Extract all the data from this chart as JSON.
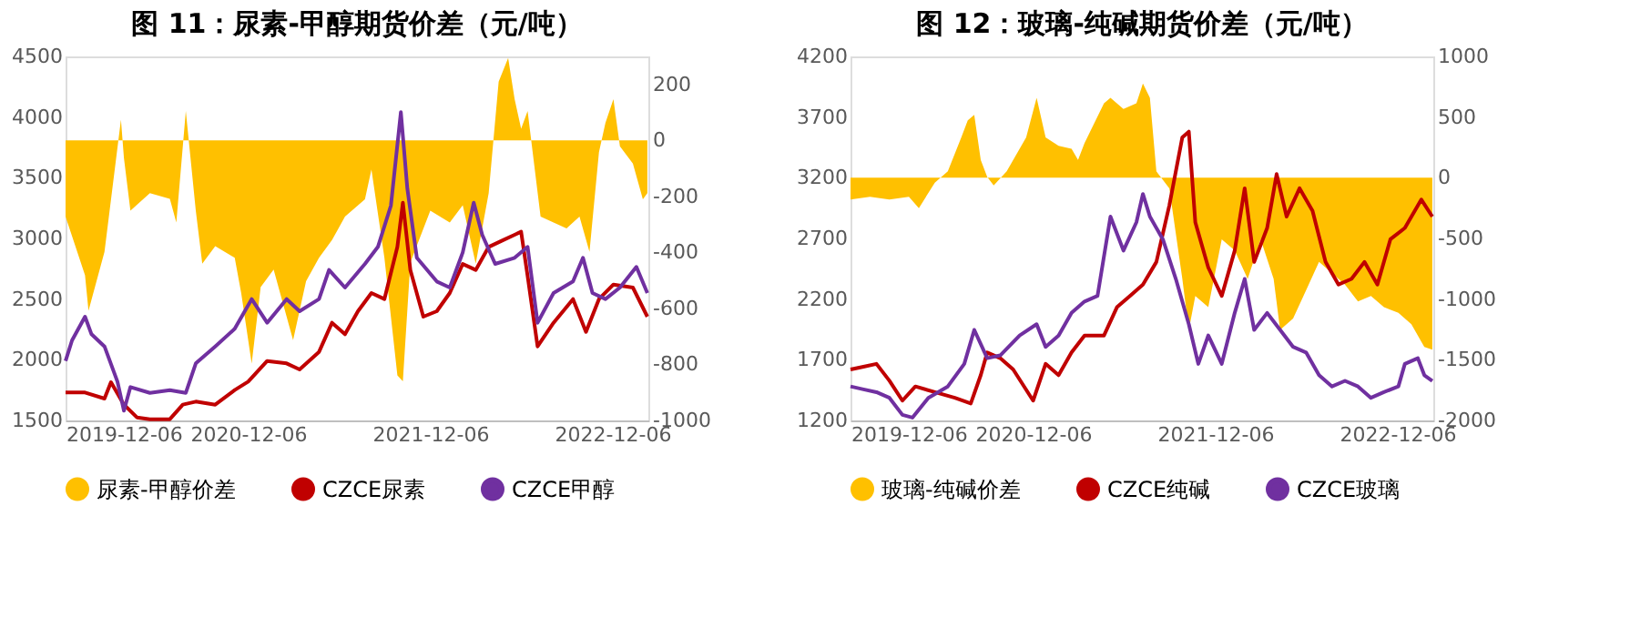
{
  "chart_data": [
    {
      "type": "line",
      "title": "图 11：尿素-甲醇期货价差（元/吨）",
      "legend": "bottom",
      "grid": false,
      "xlim": [
        "2019-12-06",
        "2023-02-16"
      ],
      "xticks": [
        {
          "value": "2019-12-06",
          "label": "2019-12-06"
        },
        {
          "value": "2020-12-06",
          "label": "2020-12-06"
        },
        {
          "value": "2021-12-06",
          "label": "2021-12-06"
        },
        {
          "value": "2022-12-06",
          "label": "2022-12-06"
        }
      ],
      "ylim": [
        1500,
        4500
      ],
      "yticks": [
        1500,
        2000,
        2500,
        3000,
        3500,
        4000,
        4500
      ],
      "y2lim": [
        -1000,
        300
      ],
      "y2ticks": [
        -1000,
        -800,
        -600,
        -400,
        -200,
        0,
        200
      ],
      "series": [
        {
          "name": "尿素-甲醇价差",
          "type": "area",
          "axis": "y2",
          "color": "#ffc000",
          "x": [
            "2019-12-06",
            "2020-01-14",
            "2020-01-21",
            "2020-02-22",
            "2020-03-26",
            "2020-04-01",
            "2020-04-14",
            "2020-05-23",
            "2020-07-02",
            "2020-07-15",
            "2020-08-03",
            "2020-08-23",
            "2020-09-05",
            "2020-10-01",
            "2020-11-09",
            "2020-11-22",
            "2020-12-13",
            "2020-12-31",
            "2021-01-26",
            "2021-03-06",
            "2021-04-01",
            "2021-04-27",
            "2021-05-23",
            "2021-06-18",
            "2021-07-28",
            "2021-08-10",
            "2021-09-05",
            "2021-10-01",
            "2021-10-12",
            "2021-10-27",
            "2021-12-06",
            "2022-01-14",
            "2022-02-09",
            "2022-03-07",
            "2022-04-02",
            "2022-04-22",
            "2022-05-11",
            "2022-05-24",
            "2022-06-06",
            "2022-06-19",
            "2022-07-15",
            "2022-08-10",
            "2022-09-05",
            "2022-10-01",
            "2022-10-21",
            "2022-11-09",
            "2022-11-22",
            "2022-12-08",
            "2022-12-21",
            "2023-01-16",
            "2023-02-05",
            "2023-02-14"
          ],
          "values": [
            -272,
            -482,
            -608,
            -398,
            74,
            -63,
            -251,
            -188,
            -209,
            -293,
            105,
            -251,
            -440,
            -378,
            -419,
            -545,
            -797,
            -524,
            -461,
            -713,
            -503,
            -419,
            -356,
            -272,
            -210,
            -104,
            -419,
            -839,
            -860,
            -436,
            -251,
            -293,
            -231,
            -440,
            -188,
            210,
            294,
            147,
            42,
            105,
            -272,
            -293,
            -314,
            -272,
            -398,
            -42,
            63,
            147,
            -21,
            -83,
            -210,
            -188
          ]
        },
        {
          "name": "CZCE尿素",
          "type": "line",
          "color": "#c00000",
          "x": [
            "2019-12-06",
            "2020-01-14",
            "2020-02-22",
            "2020-03-06",
            "2020-04-01",
            "2020-04-27",
            "2020-05-23",
            "2020-07-02",
            "2020-07-28",
            "2020-08-23",
            "2020-10-01",
            "2020-11-09",
            "2020-12-06",
            "2021-01-13",
            "2021-02-21",
            "2021-03-19",
            "2021-04-27",
            "2021-05-23",
            "2021-06-18",
            "2021-07-14",
            "2021-08-10",
            "2021-09-05",
            "2021-10-01",
            "2021-10-12",
            "2021-10-27",
            "2021-11-22",
            "2021-12-19",
            "2022-01-14",
            "2022-02-09",
            "2022-03-07",
            "2022-04-02",
            "2022-04-28",
            "2022-05-24",
            "2022-06-06",
            "2022-06-19",
            "2022-07-09",
            "2022-08-10",
            "2022-09-18",
            "2022-10-14",
            "2022-11-09",
            "2022-12-08",
            "2023-01-16",
            "2023-02-14"
          ],
          "values": [
            1730,
            1730,
            1680,
            1815,
            1630,
            1525,
            1510,
            1510,
            1630,
            1655,
            1630,
            1750,
            1820,
            1990,
            1970,
            1920,
            2065,
            2305,
            2210,
            2400,
            2550,
            2500,
            2930,
            3295,
            2740,
            2355,
            2400,
            2550,
            2790,
            2740,
            2930,
            2980,
            3030,
            3055,
            2690,
            2110,
            2305,
            2500,
            2230,
            2500,
            2620,
            2595,
            2355
          ]
        },
        {
          "name": "CZCE甲醇",
          "type": "line",
          "color": "#7030a0",
          "x": [
            "2019-12-06",
            "2019-12-19",
            "2020-01-14",
            "2020-01-27",
            "2020-02-22",
            "2020-03-19",
            "2020-04-01",
            "2020-04-14",
            "2020-05-23",
            "2020-07-02",
            "2020-08-03",
            "2020-08-23",
            "2020-10-01",
            "2020-11-09",
            "2020-12-13",
            "2021-01-13",
            "2021-02-21",
            "2021-03-19",
            "2021-04-27",
            "2021-05-17",
            "2021-06-18",
            "2021-07-28",
            "2021-08-23",
            "2021-09-18",
            "2021-10-08",
            "2021-10-21",
            "2021-11-09",
            "2021-12-19",
            "2022-01-14",
            "2022-02-09",
            "2022-03-03",
            "2022-03-20",
            "2022-04-15",
            "2022-05-24",
            "2022-06-19",
            "2022-07-09",
            "2022-08-10",
            "2022-09-18",
            "2022-10-08",
            "2022-10-27",
            "2022-11-22",
            "2022-12-21",
            "2023-01-23",
            "2023-02-14"
          ],
          "values": [
            1990,
            2160,
            2355,
            2210,
            2110,
            1820,
            1580,
            1775,
            1727,
            1750,
            1727,
            1970,
            2110,
            2255,
            2500,
            2305,
            2500,
            2400,
            2500,
            2740,
            2595,
            2790,
            2930,
            3270,
            4040,
            3410,
            2840,
            2645,
            2595,
            2885,
            3295,
            3030,
            2790,
            2840,
            2930,
            2305,
            2550,
            2645,
            2840,
            2550,
            2500,
            2595,
            2765,
            2550
          ]
        }
      ]
    },
    {
      "type": "line",
      "title": "图 12：玻璃-纯碱期货价差（元/吨）",
      "legend": "bottom",
      "grid": false,
      "xlim": [
        "2019-12-06",
        "2023-02-16"
      ],
      "xticks": [
        {
          "value": "2019-12-06",
          "label": "2019-12-06"
        },
        {
          "value": "2020-12-06",
          "label": "2020-12-06"
        },
        {
          "value": "2021-12-06",
          "label": "2021-12-06"
        },
        {
          "value": "2022-12-06",
          "label": "2022-12-06"
        }
      ],
      "ylim": [
        1200,
        4200
      ],
      "yticks": [
        1200,
        1700,
        2200,
        2700,
        3200,
        3700,
        4200
      ],
      "y2lim": [
        -2000,
        1000
      ],
      "y2ticks": [
        -2000,
        -1500,
        -1000,
        -500,
        0,
        500,
        1000
      ],
      "series": [
        {
          "name": "玻璃-纯碱价差",
          "type": "area",
          "axis": "y2",
          "color": "#ffc000",
          "x": [
            "2019-12-06",
            "2020-01-14",
            "2020-02-22",
            "2020-04-01",
            "2020-04-21",
            "2020-05-23",
            "2020-06-18",
            "2020-07-15",
            "2020-07-28",
            "2020-08-10",
            "2020-08-23",
            "2020-09-05",
            "2020-09-18",
            "2020-10-14",
            "2020-11-22",
            "2020-12-13",
            "2020-12-31",
            "2021-01-26",
            "2021-02-21",
            "2021-03-06",
            "2021-03-19",
            "2021-04-27",
            "2021-05-10",
            "2021-06-05",
            "2021-07-01",
            "2021-07-14",
            "2021-07-28",
            "2021-08-10",
            "2021-09-05",
            "2021-10-01",
            "2021-10-14",
            "2021-10-27",
            "2021-11-22",
            "2021-12-19",
            "2022-01-14",
            "2022-02-09",
            "2022-03-07",
            "2022-04-02",
            "2022-04-15",
            "2022-05-11",
            "2022-06-06",
            "2022-07-02",
            "2022-07-28",
            "2022-08-23",
            "2022-09-18",
            "2022-10-14",
            "2022-11-09",
            "2022-12-08",
            "2023-01-03",
            "2023-01-29",
            "2023-02-14"
          ],
          "values": [
            -180,
            -157,
            -180,
            -157,
            -250,
            -40,
            53,
            333,
            473,
            519,
            146,
            6,
            -64,
            53,
            333,
            659,
            333,
            263,
            239,
            146,
            286,
            613,
            659,
            566,
            613,
            776,
            659,
            53,
            -87,
            -834,
            -1254,
            -974,
            -1067,
            -507,
            -600,
            -834,
            -507,
            -834,
            -1254,
            -1160,
            -927,
            -694,
            -787,
            -880,
            -1020,
            -974,
            -1067,
            -1114,
            -1207,
            -1394,
            -1417
          ]
        },
        {
          "name": "CZCE纯碱",
          "type": "line",
          "color": "#c00000",
          "x": [
            "2019-12-06",
            "2020-01-01",
            "2020-01-27",
            "2020-02-22",
            "2020-03-19",
            "2020-04-14",
            "2020-05-23",
            "2020-07-02",
            "2020-08-03",
            "2020-08-23",
            "2020-09-05",
            "2020-10-01",
            "2020-10-27",
            "2020-12-06",
            "2020-12-31",
            "2021-01-26",
            "2021-02-21",
            "2021-03-19",
            "2021-04-27",
            "2021-05-23",
            "2021-06-18",
            "2021-07-14",
            "2021-08-10",
            "2021-09-05",
            "2021-10-01",
            "2021-10-14",
            "2021-10-27",
            "2021-11-22",
            "2021-12-19",
            "2022-01-14",
            "2022-02-03",
            "2022-02-22",
            "2022-03-20",
            "2022-04-08",
            "2022-04-28",
            "2022-05-24",
            "2022-06-19",
            "2022-07-15",
            "2022-08-10",
            "2022-09-05",
            "2022-10-01",
            "2022-10-27",
            "2022-11-22",
            "2022-12-21",
            "2023-01-23",
            "2023-02-14"
          ],
          "values": [
            1620,
            1643,
            1666,
            1527,
            1363,
            1480,
            1433,
            1386,
            1340,
            1573,
            1760,
            1713,
            1620,
            1363,
            1666,
            1573,
            1760,
            1900,
            1900,
            2133,
            2226,
            2320,
            2506,
            2973,
            3533,
            3580,
            2833,
            2460,
            2226,
            2600,
            3113,
            2506,
            2786,
            3230,
            2880,
            3113,
            2926,
            2506,
            2320,
            2366,
            2506,
            2320,
            2693,
            2786,
            3020,
            2880
          ]
        },
        {
          "name": "CZCE玻璃",
          "type": "line",
          "color": "#7030a0",
          "x": [
            "2019-12-06",
            "2020-01-01",
            "2020-01-27",
            "2020-02-22",
            "2020-03-19",
            "2020-04-08",
            "2020-05-10",
            "2020-06-18",
            "2020-07-21",
            "2020-08-10",
            "2020-09-05",
            "2020-10-01",
            "2020-11-09",
            "2020-12-13",
            "2020-12-31",
            "2021-01-26",
            "2021-02-21",
            "2021-03-19",
            "2021-04-14",
            "2021-05-10",
            "2021-06-05",
            "2021-07-01",
            "2021-07-14",
            "2021-07-28",
            "2021-08-23",
            "2021-09-18",
            "2021-10-14",
            "2021-11-02",
            "2021-11-22",
            "2021-12-19",
            "2022-01-14",
            "2022-02-03",
            "2022-02-22",
            "2022-03-20",
            "2022-04-15",
            "2022-05-11",
            "2022-06-06",
            "2022-07-02",
            "2022-07-28",
            "2022-08-23",
            "2022-09-18",
            "2022-10-14",
            "2022-11-09",
            "2022-12-08",
            "2022-12-21",
            "2023-01-16",
            "2023-01-29",
            "2023-02-14"
          ],
          "values": [
            1480,
            1456,
            1433,
            1386,
            1246,
            1223,
            1386,
            1480,
            1666,
            1946,
            1713,
            1736,
            1900,
            1993,
            1806,
            1900,
            2086,
            2180,
            2226,
            2880,
            2600,
            2833,
            3066,
            2880,
            2693,
            2366,
            1993,
            1666,
            1900,
            1666,
            2086,
            2366,
            1946,
            2086,
            1946,
            1806,
            1760,
            1573,
            1480,
            1526,
            1480,
            1386,
            1433,
            1480,
            1666,
            1713,
            1573,
            1526
          ]
        }
      ]
    }
  ]
}
